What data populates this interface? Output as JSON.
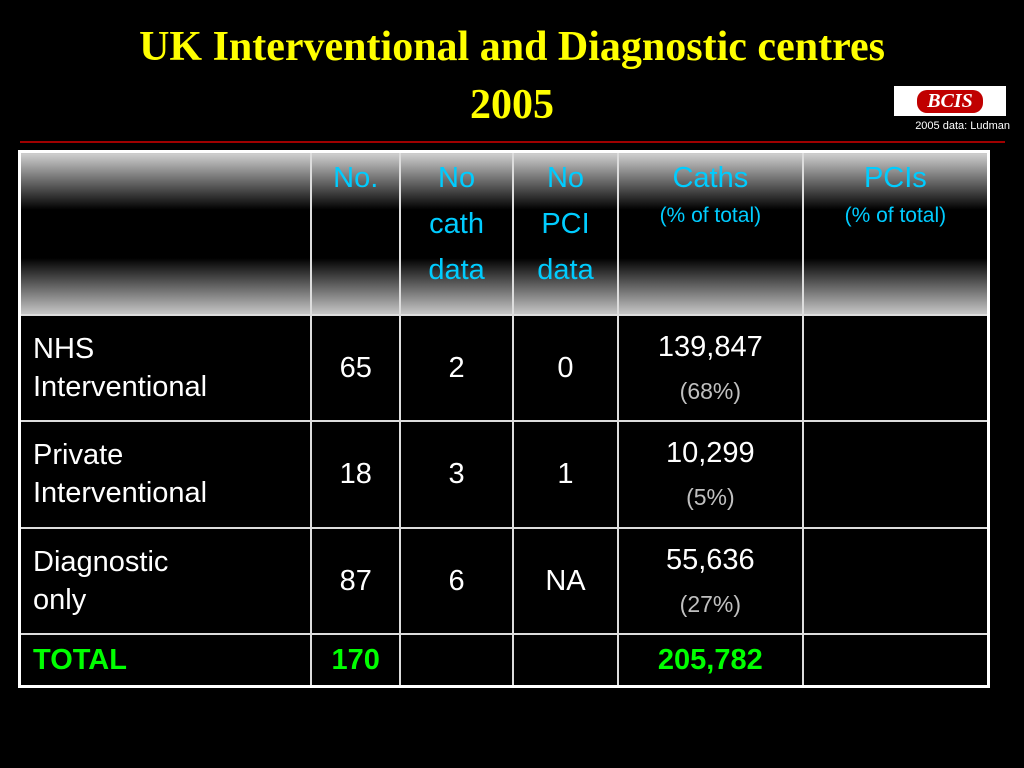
{
  "header": {
    "title": "UK Interventional and Diagnostic centres",
    "subtitle": "2005",
    "logo": "BCIS",
    "credit": "2005 data: Ludman"
  },
  "table": {
    "columns": [
      {
        "lines": [
          "No."
        ]
      },
      {
        "lines": [
          "No",
          "cath",
          "data"
        ]
      },
      {
        "lines": [
          "No",
          "PCI",
          "data"
        ]
      },
      {
        "lines": [
          "Caths"
        ],
        "note": "(% of total)"
      },
      {
        "lines": [
          "PCIs"
        ],
        "note": "(% of total)"
      }
    ],
    "rows": [
      {
        "label": [
          "NHS",
          "Interventional"
        ],
        "no": "65",
        "no_cath": "2",
        "no_pci": "0",
        "caths": "139,847",
        "caths_pct": "(68%)"
      },
      {
        "label": [
          "Private",
          "Interventional"
        ],
        "no": "18",
        "no_cath": "3",
        "no_pci": "1",
        "caths": "10,299",
        "caths_pct": "(5%)"
      },
      {
        "label": [
          "Diagnostic",
          "only"
        ],
        "no": "87",
        "no_cath": "6",
        "no_pci": "NA",
        "caths": "55,636",
        "caths_pct": "(27%)"
      }
    ],
    "total": {
      "label": "TOTAL",
      "no": "170",
      "caths": "205,782"
    }
  }
}
